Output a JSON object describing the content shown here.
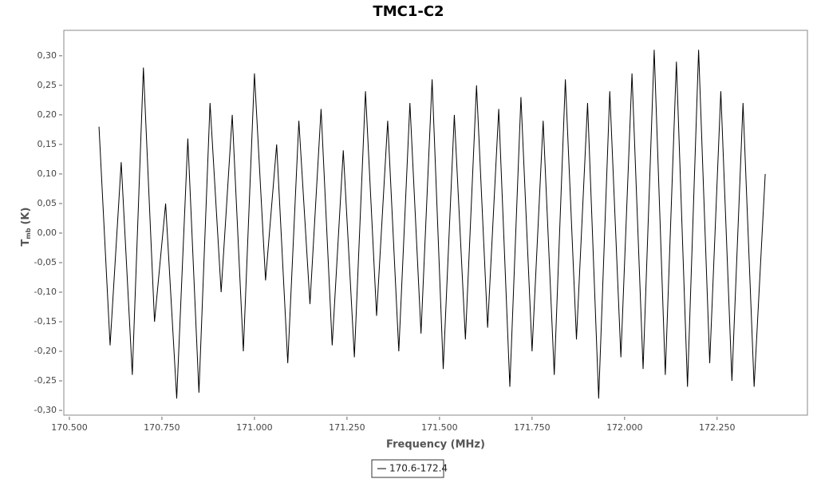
{
  "chart_data": {
    "type": "line",
    "title": "TMC1-C2",
    "x_label": "Frequency (MHz)",
    "y_label": {
      "main": "T",
      "sub": "mb",
      "unit": "(K)"
    },
    "x": [
      170.58,
      170.61,
      170.64,
      170.67,
      170.7,
      170.73,
      170.76,
      170.79,
      170.82,
      170.85,
      170.88,
      170.91,
      170.94,
      170.97,
      171,
      171.03,
      171.06,
      171.09,
      171.12,
      171.15,
      171.18,
      171.21,
      171.24,
      171.27,
      171.3,
      171.33,
      171.36,
      171.39,
      171.42,
      171.45,
      171.48,
      171.51,
      171.54,
      171.57,
      171.6,
      171.63,
      171.66,
      171.69,
      171.72,
      171.75,
      171.78,
      171.81,
      171.84,
      171.87,
      171.9,
      171.93,
      171.96,
      171.99,
      172.02,
      172.05,
      172.08,
      172.11,
      172.14,
      172.17,
      172.2,
      172.23,
      172.26,
      172.29,
      172.32,
      172.35,
      172.38
    ],
    "series": [
      {
        "name": "170.6-172.4",
        "color": "#000000",
        "values": [
          0.18,
          -0.19,
          0.12,
          -0.24,
          0.28,
          -0.15,
          0.05,
          -0.28,
          0.16,
          -0.27,
          0.22,
          -0.1,
          0.2,
          -0.2,
          0.27,
          -0.08,
          0.15,
          -0.22,
          0.19,
          -0.12,
          0.21,
          -0.19,
          0.14,
          -0.21,
          0.24,
          -0.14,
          0.19,
          -0.2,
          0.22,
          -0.17,
          0.26,
          -0.23,
          0.2,
          -0.18,
          0.25,
          -0.16,
          0.21,
          -0.26,
          0.23,
          -0.2,
          0.19,
          -0.24,
          0.26,
          -0.18,
          0.22,
          -0.28,
          0.24,
          -0.21,
          0.27,
          -0.23,
          0.31,
          -0.24,
          0.29,
          -0.26,
          0.31,
          -0.22,
          0.24,
          -0.25,
          0.22,
          -0.26,
          0.1
        ]
      }
    ],
    "xlim": [
      170.485,
      172.494
    ],
    "ylim": [
      -0.308,
      0.343
    ],
    "xticks": [
      {
        "value": 170.5,
        "label": "170.500"
      },
      {
        "value": 170.75,
        "label": "170.750"
      },
      {
        "value": 171,
        "label": "171.000"
      },
      {
        "value": 171.25,
        "label": "171.250"
      },
      {
        "value": 171.5,
        "label": "171.500"
      },
      {
        "value": 171.75,
        "label": "171.750"
      },
      {
        "value": 172,
        "label": "172.000"
      },
      {
        "value": 172.25,
        "label": "172.250"
      }
    ],
    "yticks": [
      {
        "value": -0.3,
        "label": "-0,30"
      },
      {
        "value": -0.25,
        "label": "-0,25"
      },
      {
        "value": -0.2,
        "label": "-0,20"
      },
      {
        "value": -0.15,
        "label": "-0,15"
      },
      {
        "value": -0.1,
        "label": "-0,10"
      },
      {
        "value": -0.05,
        "label": "-0,05"
      },
      {
        "value": 0,
        "label": "0,00"
      },
      {
        "value": 0.05,
        "label": "0,05"
      },
      {
        "value": 0.1,
        "label": "0,10"
      },
      {
        "value": 0.15,
        "label": "0,15"
      },
      {
        "value": 0.2,
        "label": "0,20"
      },
      {
        "value": 0.25,
        "label": "0,25"
      },
      {
        "value": 0.3,
        "label": "0,30"
      }
    ],
    "grid": false,
    "legend": "bottom"
  }
}
